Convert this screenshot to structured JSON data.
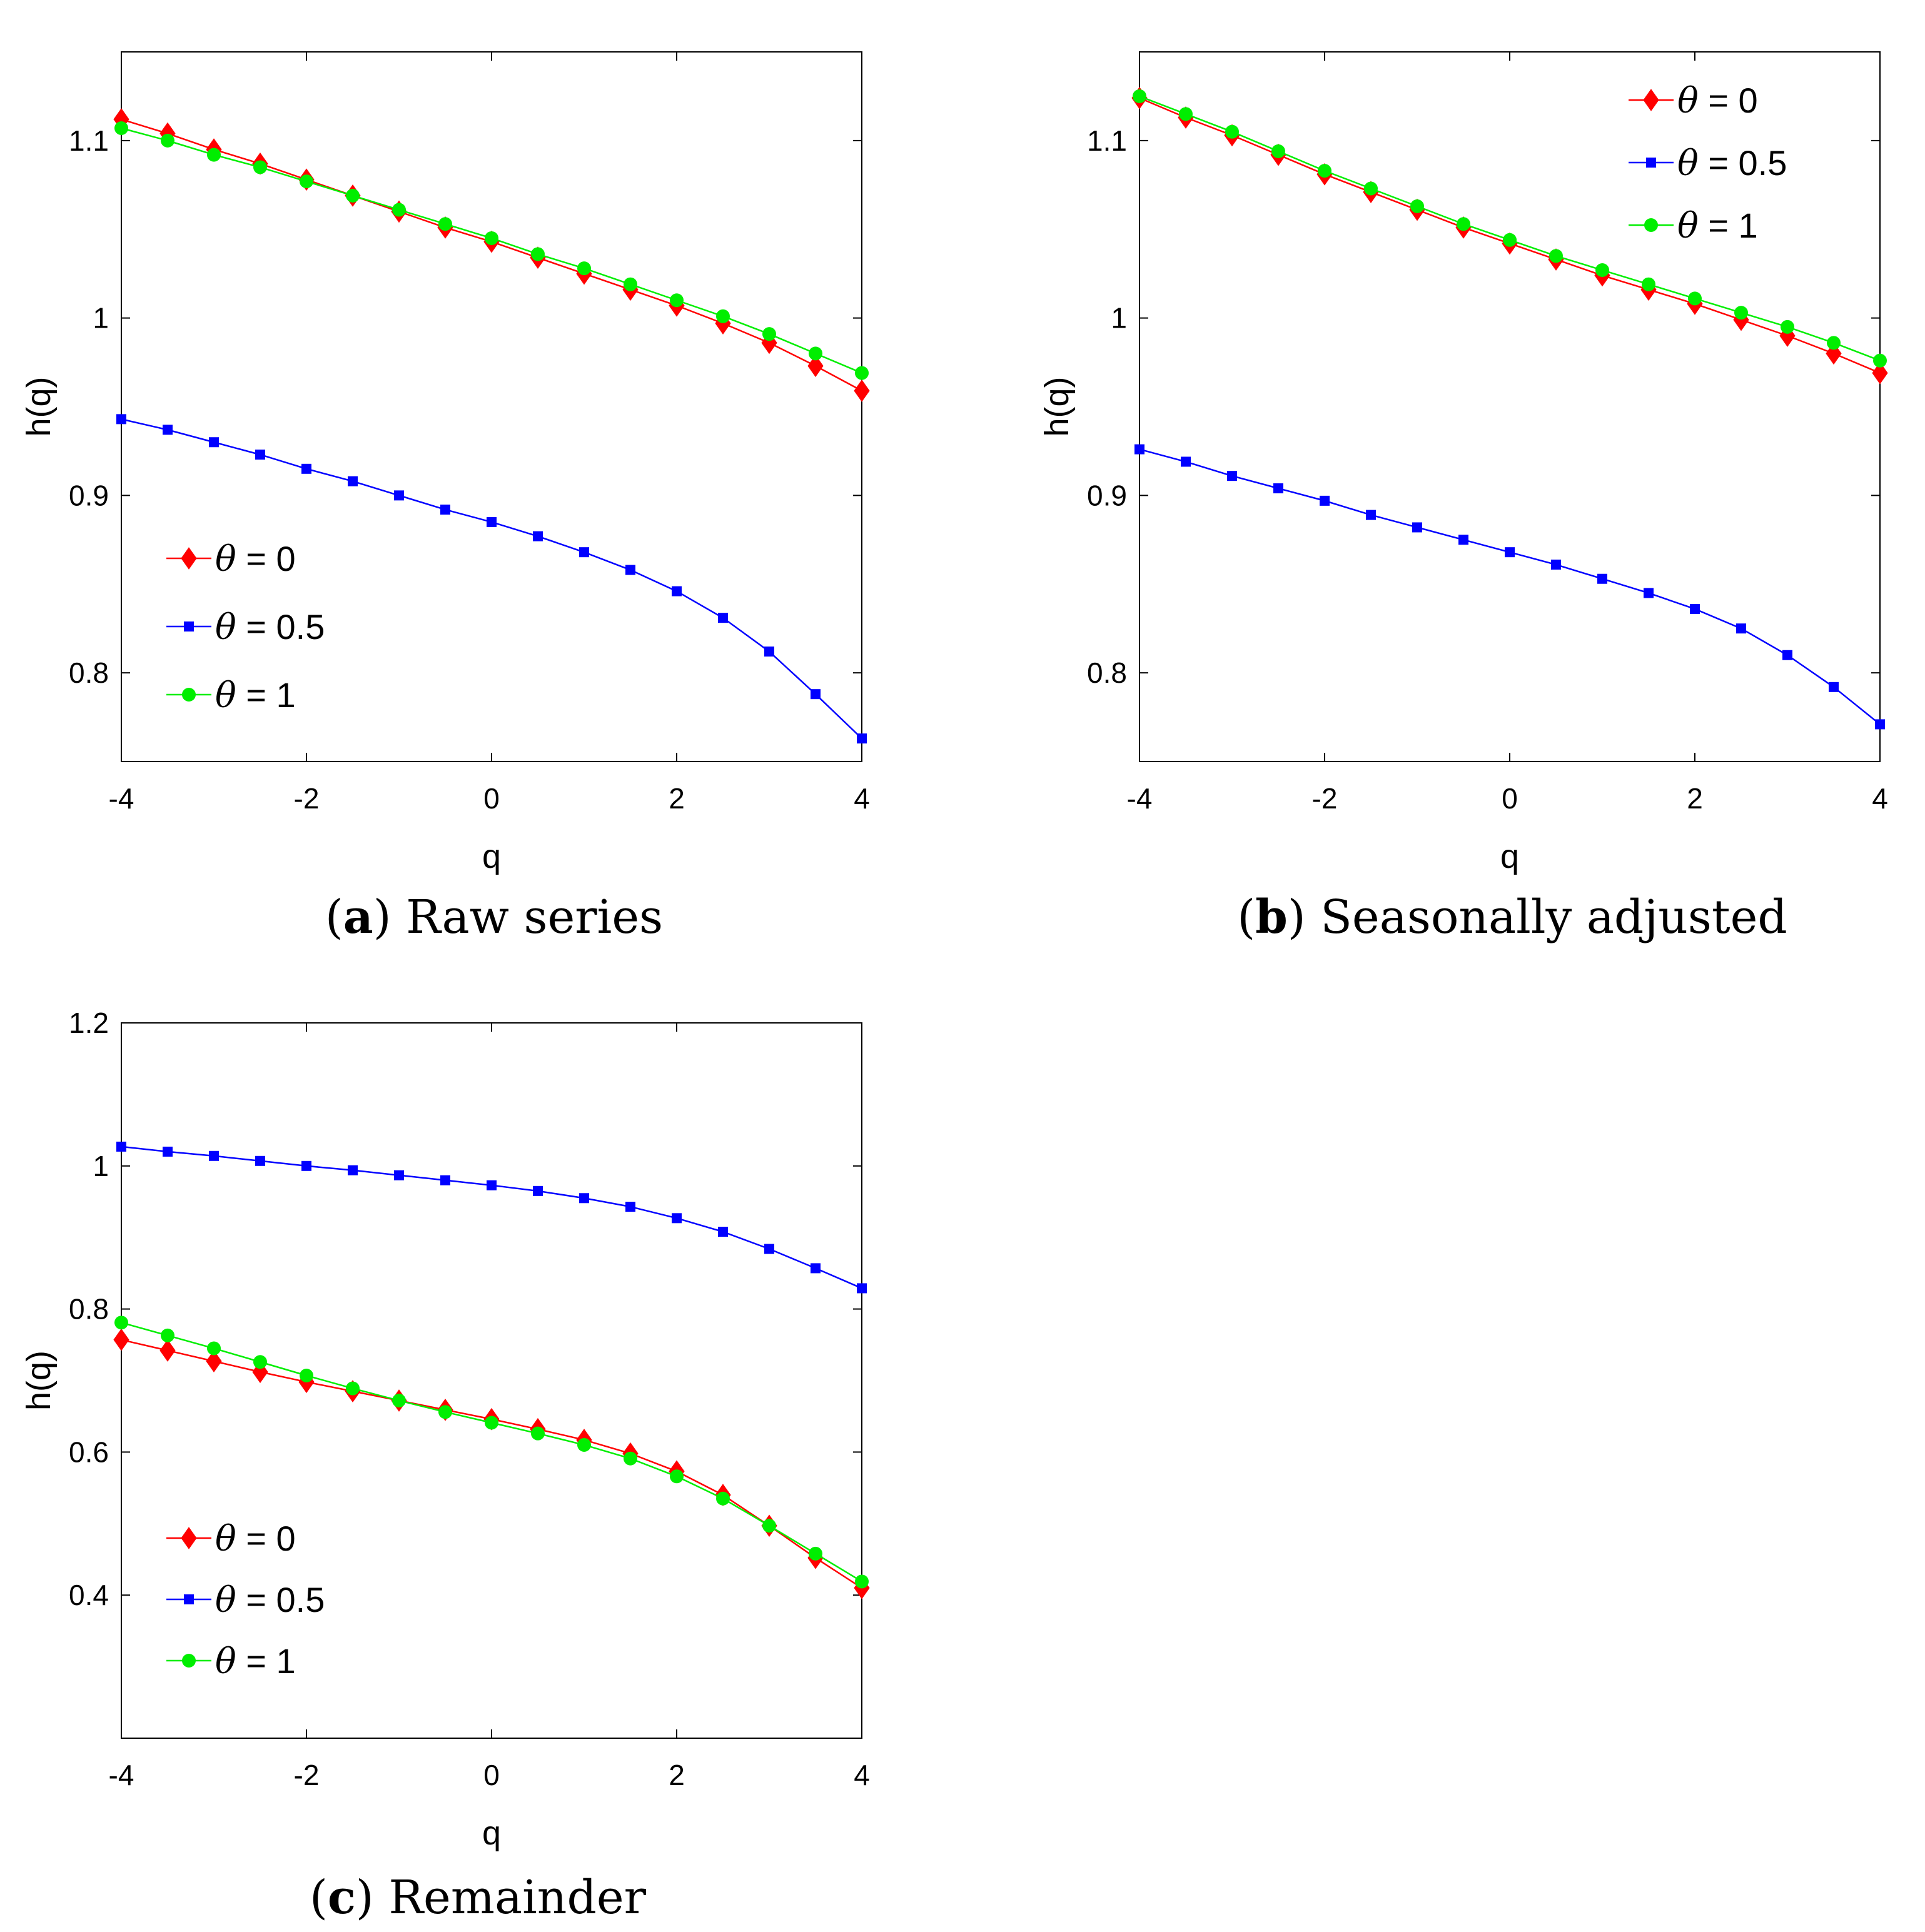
{
  "chart_data": [
    {
      "type": "line",
      "panel_label": "a",
      "caption": "Raw series",
      "xlabel": "q",
      "ylabel": "h(q)",
      "xlim": [
        -4,
        4
      ],
      "ylim": [
        0.75,
        1.15
      ],
      "xticks": [
        -4,
        -2,
        0,
        2,
        4
      ],
      "xtick_labels": [
        "-4",
        "-2",
        "0",
        "2",
        "4"
      ],
      "yticks": [
        0.8,
        0.9,
        1.0,
        1.1
      ],
      "ytick_labels": [
        "0.8",
        "0.9",
        "1",
        "1.1"
      ],
      "legend_position": "bottom-left",
      "x": [
        -4,
        -3.5,
        -3,
        -2.5,
        -2,
        -1.5,
        -1,
        -0.5,
        0,
        0.5,
        1,
        1.5,
        2,
        2.5,
        3,
        3.5,
        4
      ],
      "series": [
        {
          "name": "θ = 0",
          "symbol": "θ",
          "value_text": " = 0",
          "color": "#ff0000",
          "marker": "diamond",
          "values": [
            1.112,
            1.104,
            1.095,
            1.087,
            1.078,
            1.069,
            1.06,
            1.051,
            1.043,
            1.034,
            1.025,
            1.016,
            1.007,
            0.997,
            0.986,
            0.973,
            0.959
          ]
        },
        {
          "name": "θ = 0.5",
          "symbol": "θ",
          "value_text": " = 0.5",
          "color": "#0000ff",
          "marker": "square",
          "values": [
            0.943,
            0.937,
            0.93,
            0.923,
            0.915,
            0.908,
            0.9,
            0.892,
            0.885,
            0.877,
            0.868,
            0.858,
            0.846,
            0.831,
            0.812,
            0.788,
            0.763
          ]
        },
        {
          "name": "θ = 1",
          "symbol": "θ",
          "value_text": " = 1",
          "color": "#00ee00",
          "marker": "circle",
          "values": [
            1.107,
            1.1,
            1.092,
            1.085,
            1.077,
            1.069,
            1.061,
            1.053,
            1.045,
            1.036,
            1.028,
            1.019,
            1.01,
            1.001,
            0.991,
            0.98,
            0.969
          ]
        }
      ]
    },
    {
      "type": "line",
      "panel_label": "b",
      "caption": "Seasonally adjusted",
      "xlabel": "q",
      "ylabel": "h(q)",
      "xlim": [
        -4,
        4
      ],
      "ylim": [
        0.75,
        1.15
      ],
      "xticks": [
        -4,
        -2,
        0,
        2,
        4
      ],
      "xtick_labels": [
        "-4",
        "-2",
        "0",
        "2",
        "4"
      ],
      "yticks": [
        0.8,
        0.9,
        1.0,
        1.1
      ],
      "ytick_labels": [
        "0.8",
        "0.9",
        "1",
        "1.1"
      ],
      "legend_position": "top-right",
      "x": [
        -4,
        -3.5,
        -3,
        -2.5,
        -2,
        -1.5,
        -1,
        -0.5,
        0,
        0.5,
        1,
        1.5,
        2,
        2.5,
        3,
        3.5,
        4
      ],
      "series": [
        {
          "name": "θ = 0",
          "symbol": "θ",
          "value_text": " = 0",
          "color": "#ff0000",
          "marker": "diamond",
          "values": [
            1.124,
            1.113,
            1.103,
            1.092,
            1.081,
            1.071,
            1.061,
            1.051,
            1.042,
            1.033,
            1.024,
            1.016,
            1.008,
            0.999,
            0.99,
            0.98,
            0.969
          ]
        },
        {
          "name": "θ = 0.5",
          "symbol": "θ",
          "value_text": " = 0.5",
          "color": "#0000ff",
          "marker": "square",
          "values": [
            0.926,
            0.919,
            0.911,
            0.904,
            0.897,
            0.889,
            0.882,
            0.875,
            0.868,
            0.861,
            0.853,
            0.845,
            0.836,
            0.825,
            0.81,
            0.792,
            0.771
          ]
        },
        {
          "name": "θ = 1",
          "symbol": "θ",
          "value_text": " = 1",
          "color": "#00ee00",
          "marker": "circle",
          "values": [
            1.125,
            1.115,
            1.105,
            1.094,
            1.083,
            1.073,
            1.063,
            1.053,
            1.044,
            1.035,
            1.027,
            1.019,
            1.011,
            1.003,
            0.995,
            0.986,
            0.976
          ]
        }
      ]
    },
    {
      "type": "line",
      "panel_label": "c",
      "caption": "Remainder",
      "xlabel": "q",
      "ylabel": "h(q)",
      "xlim": [
        -4,
        4
      ],
      "ylim": [
        0.2,
        1.2
      ],
      "xticks": [
        -4,
        -2,
        0,
        2,
        4
      ],
      "xtick_labels": [
        "-4",
        "-2",
        "0",
        "2",
        "4"
      ],
      "yticks": [
        0.4,
        0.6,
        0.8,
        1.0,
        1.2
      ],
      "ytick_labels": [
        "0.4",
        "0.6",
        "0.8",
        "1",
        "1.2"
      ],
      "legend_position": "bottom-left",
      "x": [
        -4,
        -3.5,
        -3,
        -2.5,
        -2,
        -1.5,
        -1,
        -0.5,
        0,
        0.5,
        1,
        1.5,
        2,
        2.5,
        3,
        3.5,
        4
      ],
      "series": [
        {
          "name": "θ = 0",
          "symbol": "θ",
          "value_text": " = 0",
          "color": "#ff0000",
          "marker": "diamond",
          "values": [
            0.757,
            0.742,
            0.727,
            0.712,
            0.698,
            0.685,
            0.672,
            0.659,
            0.646,
            0.632,
            0.617,
            0.598,
            0.573,
            0.54,
            0.497,
            0.452,
            0.41
          ]
        },
        {
          "name": "θ = 0.5",
          "symbol": "θ",
          "value_text": " = 0.5",
          "color": "#0000ff",
          "marker": "square",
          "values": [
            1.027,
            1.02,
            1.014,
            1.007,
            1.0,
            0.994,
            0.987,
            0.98,
            0.973,
            0.965,
            0.955,
            0.943,
            0.927,
            0.908,
            0.884,
            0.857,
            0.829
          ]
        },
        {
          "name": "θ = 1",
          "symbol": "θ",
          "value_text": " = 1",
          "color": "#00ee00",
          "marker": "circle",
          "values": [
            0.781,
            0.763,
            0.745,
            0.726,
            0.707,
            0.689,
            0.672,
            0.656,
            0.641,
            0.626,
            0.61,
            0.591,
            0.566,
            0.535,
            0.497,
            0.458,
            0.419
          ]
        }
      ]
    }
  ]
}
